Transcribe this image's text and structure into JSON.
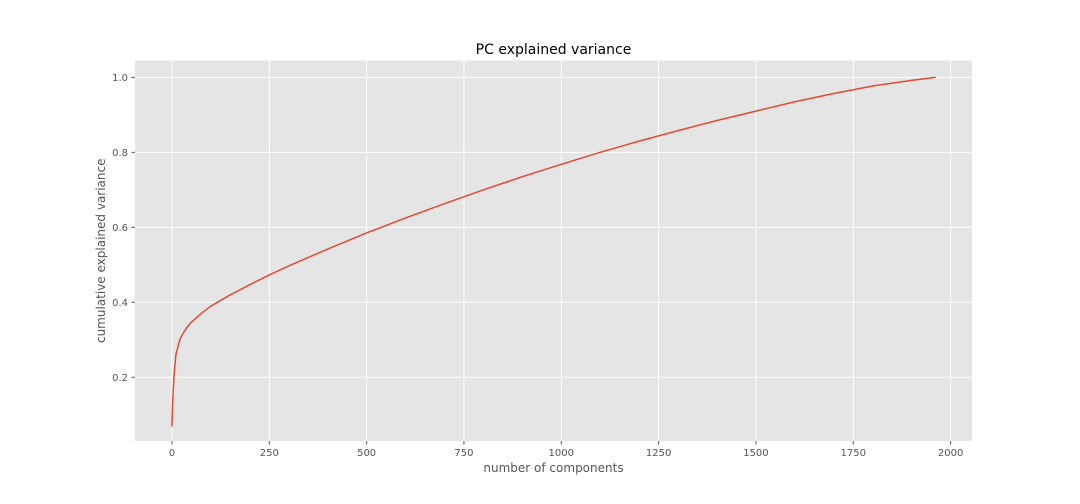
{
  "chart_data": {
    "type": "line",
    "title": "PC explained variance",
    "xlabel": "number of components",
    "ylabel": "cumulative explained variance",
    "xlim": [
      -95,
      2055
    ],
    "ylim": [
      0.03,
      1.045
    ],
    "xticks": [
      0,
      250,
      500,
      750,
      1000,
      1250,
      1500,
      1750,
      2000
    ],
    "yticks": [
      0.2,
      0.4,
      0.6,
      0.8,
      1.0
    ],
    "xtick_labels": [
      "0",
      "250",
      "500",
      "750",
      "1000",
      "1250",
      "1500",
      "1750",
      "2000"
    ],
    "ytick_labels": [
      "0.2",
      "0.4",
      "0.6",
      "0.8",
      "1.0"
    ],
    "grid": true,
    "background": "#e5e5e5",
    "series": [
      {
        "color": "#e24a33",
        "x": [
          0,
          2,
          5,
          10,
          15,
          20,
          30,
          40,
          50,
          75,
          100,
          150,
          200,
          250,
          300,
          400,
          500,
          600,
          700,
          800,
          900,
          1000,
          1100,
          1200,
          1300,
          1400,
          1500,
          1600,
          1700,
          1800,
          1900,
          1960
        ],
        "y": [
          0.07,
          0.14,
          0.2,
          0.26,
          0.28,
          0.3,
          0.32,
          0.335,
          0.347,
          0.37,
          0.39,
          0.42,
          0.447,
          0.473,
          0.497,
          0.542,
          0.585,
          0.625,
          0.663,
          0.7,
          0.735,
          0.768,
          0.8,
          0.83,
          0.858,
          0.885,
          0.91,
          0.935,
          0.957,
          0.977,
          0.992,
          1.0
        ]
      }
    ]
  }
}
